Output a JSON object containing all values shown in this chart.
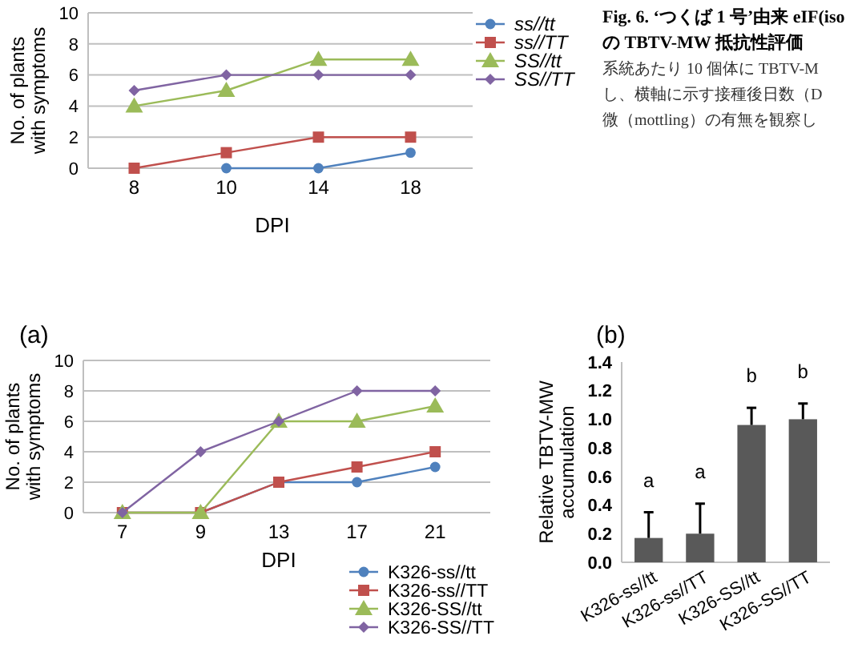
{
  "chart_data": [
    {
      "type": "line",
      "categories": [
        "8",
        "10",
        "14",
        "18"
      ],
      "xlabel": "DPI",
      "ylabel": "No. of plants\nwith symptoms",
      "ylim": [
        0,
        10
      ],
      "yticks": [
        0,
        2,
        4,
        6,
        8,
        10
      ],
      "grid": "y",
      "legend": "right",
      "series": [
        {
          "name": "ss//tt",
          "color": "#4f81bd",
          "marker": "circle",
          "values": [
            null,
            0,
            0,
            1
          ]
        },
        {
          "name": "ss//TT",
          "color": "#c0504d",
          "marker": "square",
          "values": [
            0,
            1,
            2,
            2
          ]
        },
        {
          "name": "SS//tt",
          "color": "#9bbb59",
          "marker": "triangle",
          "values": [
            4,
            5,
            7,
            7
          ]
        },
        {
          "name": "SS//TT",
          "color": "#8064a2",
          "marker": "diamond",
          "values": [
            5,
            6,
            6,
            6
          ]
        }
      ],
      "annotations": [
        "Fig. 6. ‘つくば 1 号’由来 eIF(iso",
        "の TBTV-MW 抵抗性評価",
        "系統あたり 10 個体に TBTV-M",
        "し、横軸に示す接種後日数（D",
        "微（mottling）の有無を観察し"
      ]
    },
    {
      "type": "line",
      "title": "(a)",
      "categories": [
        "7",
        "9",
        "13",
        "17",
        "21"
      ],
      "xlabel": "DPI",
      "ylabel": "No. of plants\nwith symptoms",
      "ylim": [
        0,
        10
      ],
      "yticks": [
        0,
        2,
        4,
        6,
        8,
        10
      ],
      "grid": "y",
      "legend": "bottom right",
      "series": [
        {
          "name": "K326-ss//tt",
          "color": "#4f81bd",
          "marker": "circle",
          "values": [
            0,
            0,
            2,
            2,
            3
          ]
        },
        {
          "name": "K326-ss//TT",
          "color": "#c0504d",
          "marker": "square",
          "values": [
            0,
            0,
            2,
            3,
            4
          ]
        },
        {
          "name": "K326-SS//tt",
          "color": "#9bbb59",
          "marker": "triangle",
          "values": [
            0,
            0,
            6,
            6,
            7
          ]
        },
        {
          "name": "K326-SS//TT",
          "color": "#8064a2",
          "marker": "diamond",
          "values": [
            0,
            4,
            6,
            8,
            8
          ]
        }
      ]
    },
    {
      "type": "bar",
      "title": "(b)",
      "categories": [
        "K326-ss//tt",
        "K326-ss//TT",
        "K326-SS//tt",
        "K326-SS//TT"
      ],
      "ylabel": "Relative TBTV-MW\naccumulation",
      "ylim": [
        0,
        1.4
      ],
      "yticks": [
        {
          "value": 0,
          "label": "0.0"
        },
        {
          "value": 0.2,
          "label": "0.2"
        },
        {
          "value": 0.4,
          "label": "0.4"
        },
        {
          "value": 0.6,
          "label": "0.6"
        },
        {
          "value": 0.8,
          "label": "0.8"
        },
        {
          "value": 1,
          "label": "1.0"
        },
        {
          "value": 1.2,
          "label": "1.2"
        },
        {
          "value": 1.4,
          "label": "1.4"
        }
      ],
      "color": "#595959",
      "values": [
        0.17,
        0.2,
        0.96,
        1.0
      ],
      "errors": [
        [
          0.17,
          0.35
        ],
        [
          0.2,
          0.41
        ],
        [
          0.96,
          1.08
        ],
        [
          1.0,
          1.11
        ]
      ],
      "annotations": [
        "a",
        "a",
        "b",
        "b"
      ]
    }
  ]
}
